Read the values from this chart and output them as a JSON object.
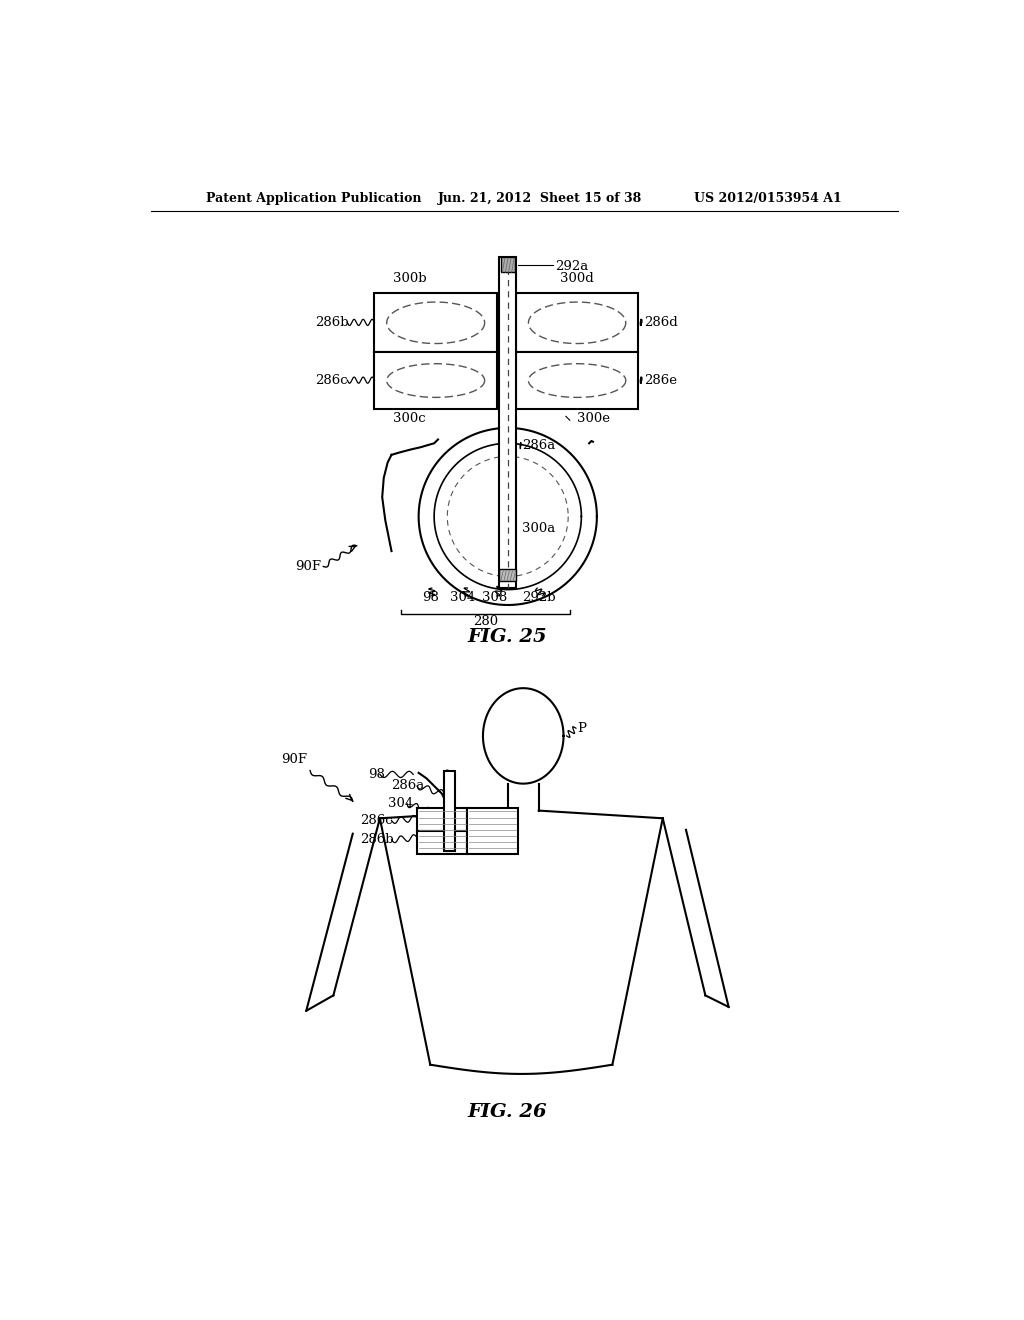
{
  "header_left": "Patent Application Publication",
  "header_mid": "Jun. 21, 2012  Sheet 15 of 38",
  "header_right": "US 2012/0153954 A1",
  "fig25_label": "FIG. 25",
  "fig26_label": "FIG. 26",
  "bg_color": "#ffffff",
  "line_color": "#000000"
}
